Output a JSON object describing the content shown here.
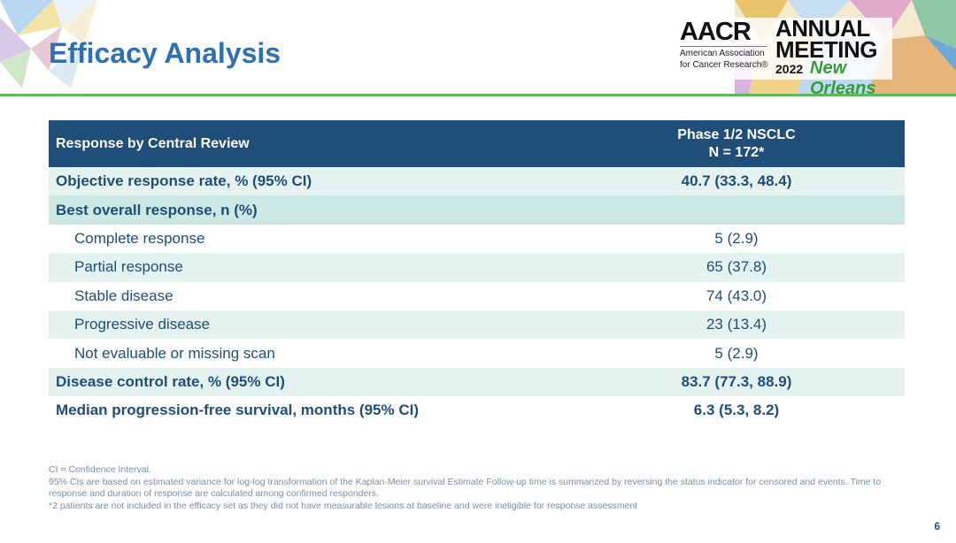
{
  "title": "Efficacy Analysis",
  "logo": {
    "aacr": "AACR",
    "org": "American Association for Cancer Research®",
    "annual": "ANNUAL",
    "meeting": "MEETING",
    "year": "2022",
    "city": "New Orleans"
  },
  "table": {
    "header_col1": "Response by Central Review",
    "header_col2_line1": "Phase 1/2 NSCLC",
    "header_col2_line2": "N = 172*",
    "rows": [
      {
        "label": "Objective response rate, % (95% CI)",
        "value": "40.7 (33.3, 48.4)"
      },
      {
        "label": "Best overall response, n (%)",
        "value": ""
      },
      {
        "label": "Complete response",
        "value": "5 (2.9)"
      },
      {
        "label": "Partial response",
        "value": "65 (37.8)"
      },
      {
        "label": "Stable disease",
        "value": "74 (43.0)"
      },
      {
        "label": "Progressive disease",
        "value": "23 (13.4)"
      },
      {
        "label": "Not evaluable or missing scan",
        "value": "5 (2.9)"
      },
      {
        "label": "Disease control rate, % (95% CI)",
        "value": "83.7 (77.3, 88.9)"
      },
      {
        "label": "Median progression-free survival, months (95% CI)",
        "value": "6.3 (5.3, 8.2)"
      }
    ]
  },
  "footnotes": [
    "CI = Confidence Interval.",
    "95% CIs are based on estimated variance for log-log transformation of the Kaplan-Meier survival Estimate Follow-up time is summarized by reversing the status indicator for censored and events. Time to response and duration of response are calculated among confirmed responders.",
    "*2 patients are not included in the efficacy set as they did not have measurable lesions at baseline and were ineligible for response assessment"
  ],
  "page_number": "6"
}
